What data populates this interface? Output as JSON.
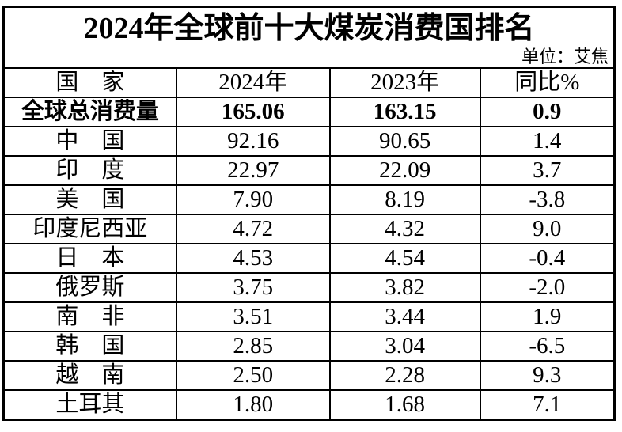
{
  "page": {
    "title": "2024年全球前十大煤炭消费国排名",
    "unit_note": "单位：艾焦",
    "header": [
      "国　家",
      "2024年",
      "2023年",
      "同比%"
    ],
    "rows": [
      [
        "全球总消费量",
        "165.06",
        "163.15",
        "0.9"
      ],
      [
        "中　国",
        "92.16",
        "90.65",
        "1.4"
      ],
      [
        "印　度",
        "22.97",
        "22.09",
        "3.7"
      ],
      [
        "美　国",
        "7.90",
        "8.19",
        "-3.8"
      ],
      [
        "印度尼西亚",
        "4.72",
        "4.32",
        "9.0"
      ],
      [
        "日　本",
        "4.53",
        "4.54",
        "-0.4"
      ],
      [
        "俄罗斯",
        "3.75",
        "3.82",
        "-2.0"
      ],
      [
        "南　非",
        "3.51",
        "3.44",
        "1.9"
      ],
      [
        "韩　国",
        "2.85",
        "3.04",
        "-6.5"
      ],
      [
        "越　南",
        "2.50",
        "2.28",
        "9.3"
      ],
      [
        "土耳其",
        "1.80",
        "1.68",
        "7.1"
      ]
    ]
  },
  "colors": {
    "text": "#000000",
    "border": "#000000",
    "background": "#ffffff"
  },
  "chart_data": {
    "type": "table",
    "title": "2024年全球前十大煤炭消费国排名",
    "unit": "艾焦",
    "unit_label": "单位：艾焦",
    "columns": [
      "国家",
      "2024年",
      "2023年",
      "同比%"
    ],
    "rows": [
      {
        "name": "全球总消费量",
        "y2024": 165.06,
        "y2023": 163.15,
        "yoy_pct": 0.9,
        "bold": true
      },
      {
        "name": "中国",
        "y2024": 92.16,
        "y2023": 90.65,
        "yoy_pct": 1.4,
        "bold": false
      },
      {
        "name": "印度",
        "y2024": 22.97,
        "y2023": 22.09,
        "yoy_pct": 3.7,
        "bold": false
      },
      {
        "name": "美国",
        "y2024": 7.9,
        "y2023": 8.19,
        "yoy_pct": -3.8,
        "bold": false
      },
      {
        "name": "印度尼西亚",
        "y2024": 4.72,
        "y2023": 4.32,
        "yoy_pct": 9.0,
        "bold": false
      },
      {
        "name": "日本",
        "y2024": 4.53,
        "y2023": 4.54,
        "yoy_pct": -0.4,
        "bold": false
      },
      {
        "name": "俄罗斯",
        "y2024": 3.75,
        "y2023": 3.82,
        "yoy_pct": -2.0,
        "bold": false
      },
      {
        "name": "南非",
        "y2024": 3.51,
        "y2023": 3.44,
        "yoy_pct": 1.9,
        "bold": false
      },
      {
        "name": "韩国",
        "y2024": 2.85,
        "y2023": 3.04,
        "yoy_pct": -6.5,
        "bold": false
      },
      {
        "name": "越南",
        "y2024": 2.5,
        "y2023": 2.28,
        "yoy_pct": 9.3,
        "bold": false
      },
      {
        "name": "土耳其",
        "y2024": 1.8,
        "y2023": 1.68,
        "yoy_pct": 7.1,
        "bold": false
      }
    ]
  }
}
